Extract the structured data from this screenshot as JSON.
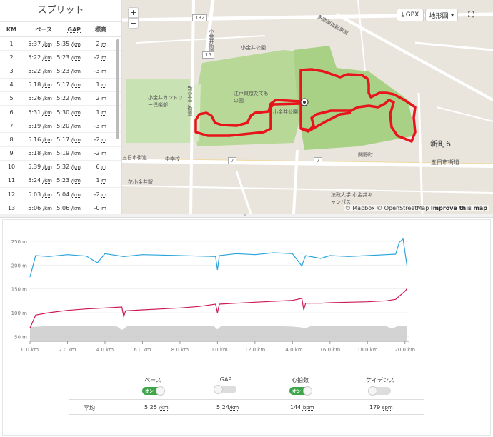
{
  "splits": {
    "title": "スプリット",
    "headers": {
      "km": "KM",
      "pace": "ペース",
      "gap": "GAP",
      "elev": "標高"
    },
    "pace_unit": "/km",
    "elev_unit": "m",
    "rows": [
      {
        "km": "1",
        "pace": "5:37",
        "gap": "5:35",
        "elev": "2"
      },
      {
        "km": "2",
        "pace": "5:22",
        "gap": "5:23",
        "elev": "-2"
      },
      {
        "km": "3",
        "pace": "5:22",
        "gap": "5:23",
        "elev": "-3"
      },
      {
        "km": "4",
        "pace": "5:18",
        "gap": "5:17",
        "elev": "1"
      },
      {
        "km": "5",
        "pace": "5:26",
        "gap": "5:22",
        "elev": "2"
      },
      {
        "km": "6",
        "pace": "5:31",
        "gap": "5:30",
        "elev": "1"
      },
      {
        "km": "7",
        "pace": "5:19",
        "gap": "5:20",
        "elev": "-3"
      },
      {
        "km": "8",
        "pace": "5:16",
        "gap": "5:17",
        "elev": "-2"
      },
      {
        "km": "9",
        "pace": "5:18",
        "gap": "5:19",
        "elev": "-2"
      },
      {
        "km": "10",
        "pace": "5:39",
        "gap": "5:32",
        "elev": "6"
      },
      {
        "km": "11",
        "pace": "5:24",
        "gap": "5:23",
        "elev": "1"
      },
      {
        "km": "12",
        "pace": "5:03",
        "gap": "5:04",
        "elev": "-2"
      },
      {
        "km": "13",
        "pace": "5:06",
        "gap": "5:06",
        "elev": "-0"
      }
    ]
  },
  "map": {
    "zoom_in": "+",
    "zoom_out": "−",
    "gpx_label": "GPX",
    "terrain_label": "地形図",
    "labels": {
      "park": "小金井公園",
      "town": "新町6",
      "road1": "五日市街道",
      "road2": "小金井街道",
      "road3": "多摩湖自転車道",
      "route132": "132",
      "route15": "15",
      "route7a": "7",
      "route7b": "7",
      "station": "関野町",
      "garden": "江戸東京たてもの園",
      "road4": "五日市街道",
      "road5": "新小金井街道",
      "univ": "法政大学 小金井キャンパス",
      "park2": "小金井公園",
      "mall": "花小金井駅",
      "cemetery": "小金井カントリー倶楽部",
      "school": "中学校"
    },
    "attribution": "© Mapbox © OpenStreetMap",
    "improve": "Improve this map",
    "colors": {
      "route": "#e8141b",
      "park": "#b9d99a",
      "road": "#ffffff"
    }
  },
  "chart_data": {
    "type": "line",
    "x_unit": "km",
    "x_ticks": [
      "0.0 km",
      "2.0 km",
      "4.0 km",
      "6.0 km",
      "8.0 km",
      "10.0 km",
      "12.0 km",
      "14.0 km",
      "16.0 km",
      "18.0 km",
      "20.0 km"
    ],
    "y_ticks": [
      "250 m",
      "200 m",
      "150 m",
      "100 m",
      "50 m"
    ],
    "xlim": [
      0,
      20.2
    ],
    "series": [
      {
        "key": "pace",
        "color": "#29a3dc",
        "x": [
          0,
          0.3,
          1,
          2,
          3,
          3.6,
          4,
          5,
          6,
          7,
          8,
          9,
          9.9,
          10,
          10.1,
          11,
          12,
          13,
          14,
          14.5,
          14.6,
          14.7,
          15.5,
          16,
          17,
          18,
          19,
          19.5,
          19.7,
          19.9,
          20.1
        ],
        "y": [
          175,
          220,
          218,
          222,
          219,
          205,
          224,
          218,
          222,
          221,
          220,
          219,
          218,
          190,
          220,
          224,
          222,
          226,
          224,
          198,
          210,
          220,
          214,
          220,
          218,
          220,
          222,
          223,
          248,
          255,
          200
        ]
      },
      {
        "key": "heartrate",
        "color": "#cc1a56",
        "x": [
          0,
          0.3,
          1,
          2,
          3,
          4,
          4.9,
          5,
          5.1,
          6,
          7,
          8,
          9,
          9.9,
          10,
          10.1,
          11,
          12,
          13,
          14,
          14.5,
          14.6,
          14.7,
          15.5,
          16,
          17,
          18,
          19,
          19.5,
          20,
          20.1
        ],
        "y": [
          68,
          95,
          100,
          105,
          108,
          110,
          112,
          92,
          104,
          106,
          108,
          110,
          113,
          118,
          100,
          118,
          120,
          122,
          124,
          126,
          130,
          106,
          120,
          120,
          121,
          122,
          123,
          125,
          128,
          145,
          150
        ]
      },
      {
        "key": "elevation",
        "color": "#c8c8c8",
        "x": [
          0,
          1,
          2,
          3,
          4,
          4.6,
          4.9,
          5.2,
          6,
          7,
          8,
          9,
          9.8,
          10,
          10.2,
          11,
          12,
          13,
          14,
          14.5,
          14.6,
          15,
          16,
          17,
          18,
          19,
          19.3,
          19.6,
          20,
          20.1
        ],
        "y": [
          70,
          72,
          72,
          72,
          72,
          72,
          64,
          72,
          72,
          72,
          72,
          72,
          72,
          65,
          72,
          72,
          72,
          72,
          71,
          69,
          66,
          72,
          73,
          73,
          72,
          72,
          66,
          72,
          73,
          73
        ]
      }
    ]
  },
  "legend": {
    "on_label": "オン",
    "items": [
      {
        "name": "ペース",
        "state": "on"
      },
      {
        "name": "GAP",
        "state": "off"
      },
      {
        "name": "心拍数",
        "state": "on"
      },
      {
        "name": "ケイデンス",
        "state": "off"
      }
    ]
  },
  "averages": {
    "label": "平均",
    "pace": "5:25",
    "pace_unit": "/km",
    "gap": "5:24",
    "gap_unit": "/km",
    "hr": "144",
    "hr_unit": "bpm",
    "cadence": "179",
    "cadence_unit": "spm"
  }
}
